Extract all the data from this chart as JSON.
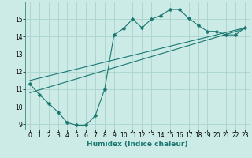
{
  "title": "",
  "xlabel": "Humidex (Indice chaleur)",
  "ylabel": "",
  "bg_color": "#cceae6",
  "grid_color": "#aad4cf",
  "line_color": "#1a7870",
  "xlim": [
    -0.5,
    23.5
  ],
  "ylim": [
    8.7,
    16.0
  ],
  "yticks": [
    9,
    10,
    11,
    12,
    13,
    14,
    15
  ],
  "xticks": [
    0,
    1,
    2,
    3,
    4,
    5,
    6,
    7,
    8,
    9,
    10,
    11,
    12,
    13,
    14,
    15,
    16,
    17,
    18,
    19,
    20,
    21,
    22,
    23
  ],
  "line1_x": [
    0,
    1,
    2,
    3,
    4,
    5,
    6,
    7,
    8,
    9,
    10,
    11,
    12,
    13,
    14,
    15,
    16,
    17,
    18,
    19,
    20,
    21,
    22,
    23
  ],
  "line1_y": [
    11.3,
    10.7,
    10.2,
    9.7,
    9.1,
    8.95,
    8.95,
    9.5,
    11.0,
    14.1,
    14.45,
    15.0,
    14.5,
    15.0,
    15.2,
    15.55,
    15.55,
    15.05,
    14.65,
    14.3,
    14.3,
    14.1,
    14.1,
    14.5
  ],
  "line2_x": [
    0,
    23
  ],
  "line2_y": [
    10.8,
    14.45
  ],
  "line3_x": [
    0,
    23
  ],
  "line3_y": [
    11.5,
    14.5
  ],
  "marker": "D",
  "markersize": 2.5,
  "linewidth": 0.8
}
